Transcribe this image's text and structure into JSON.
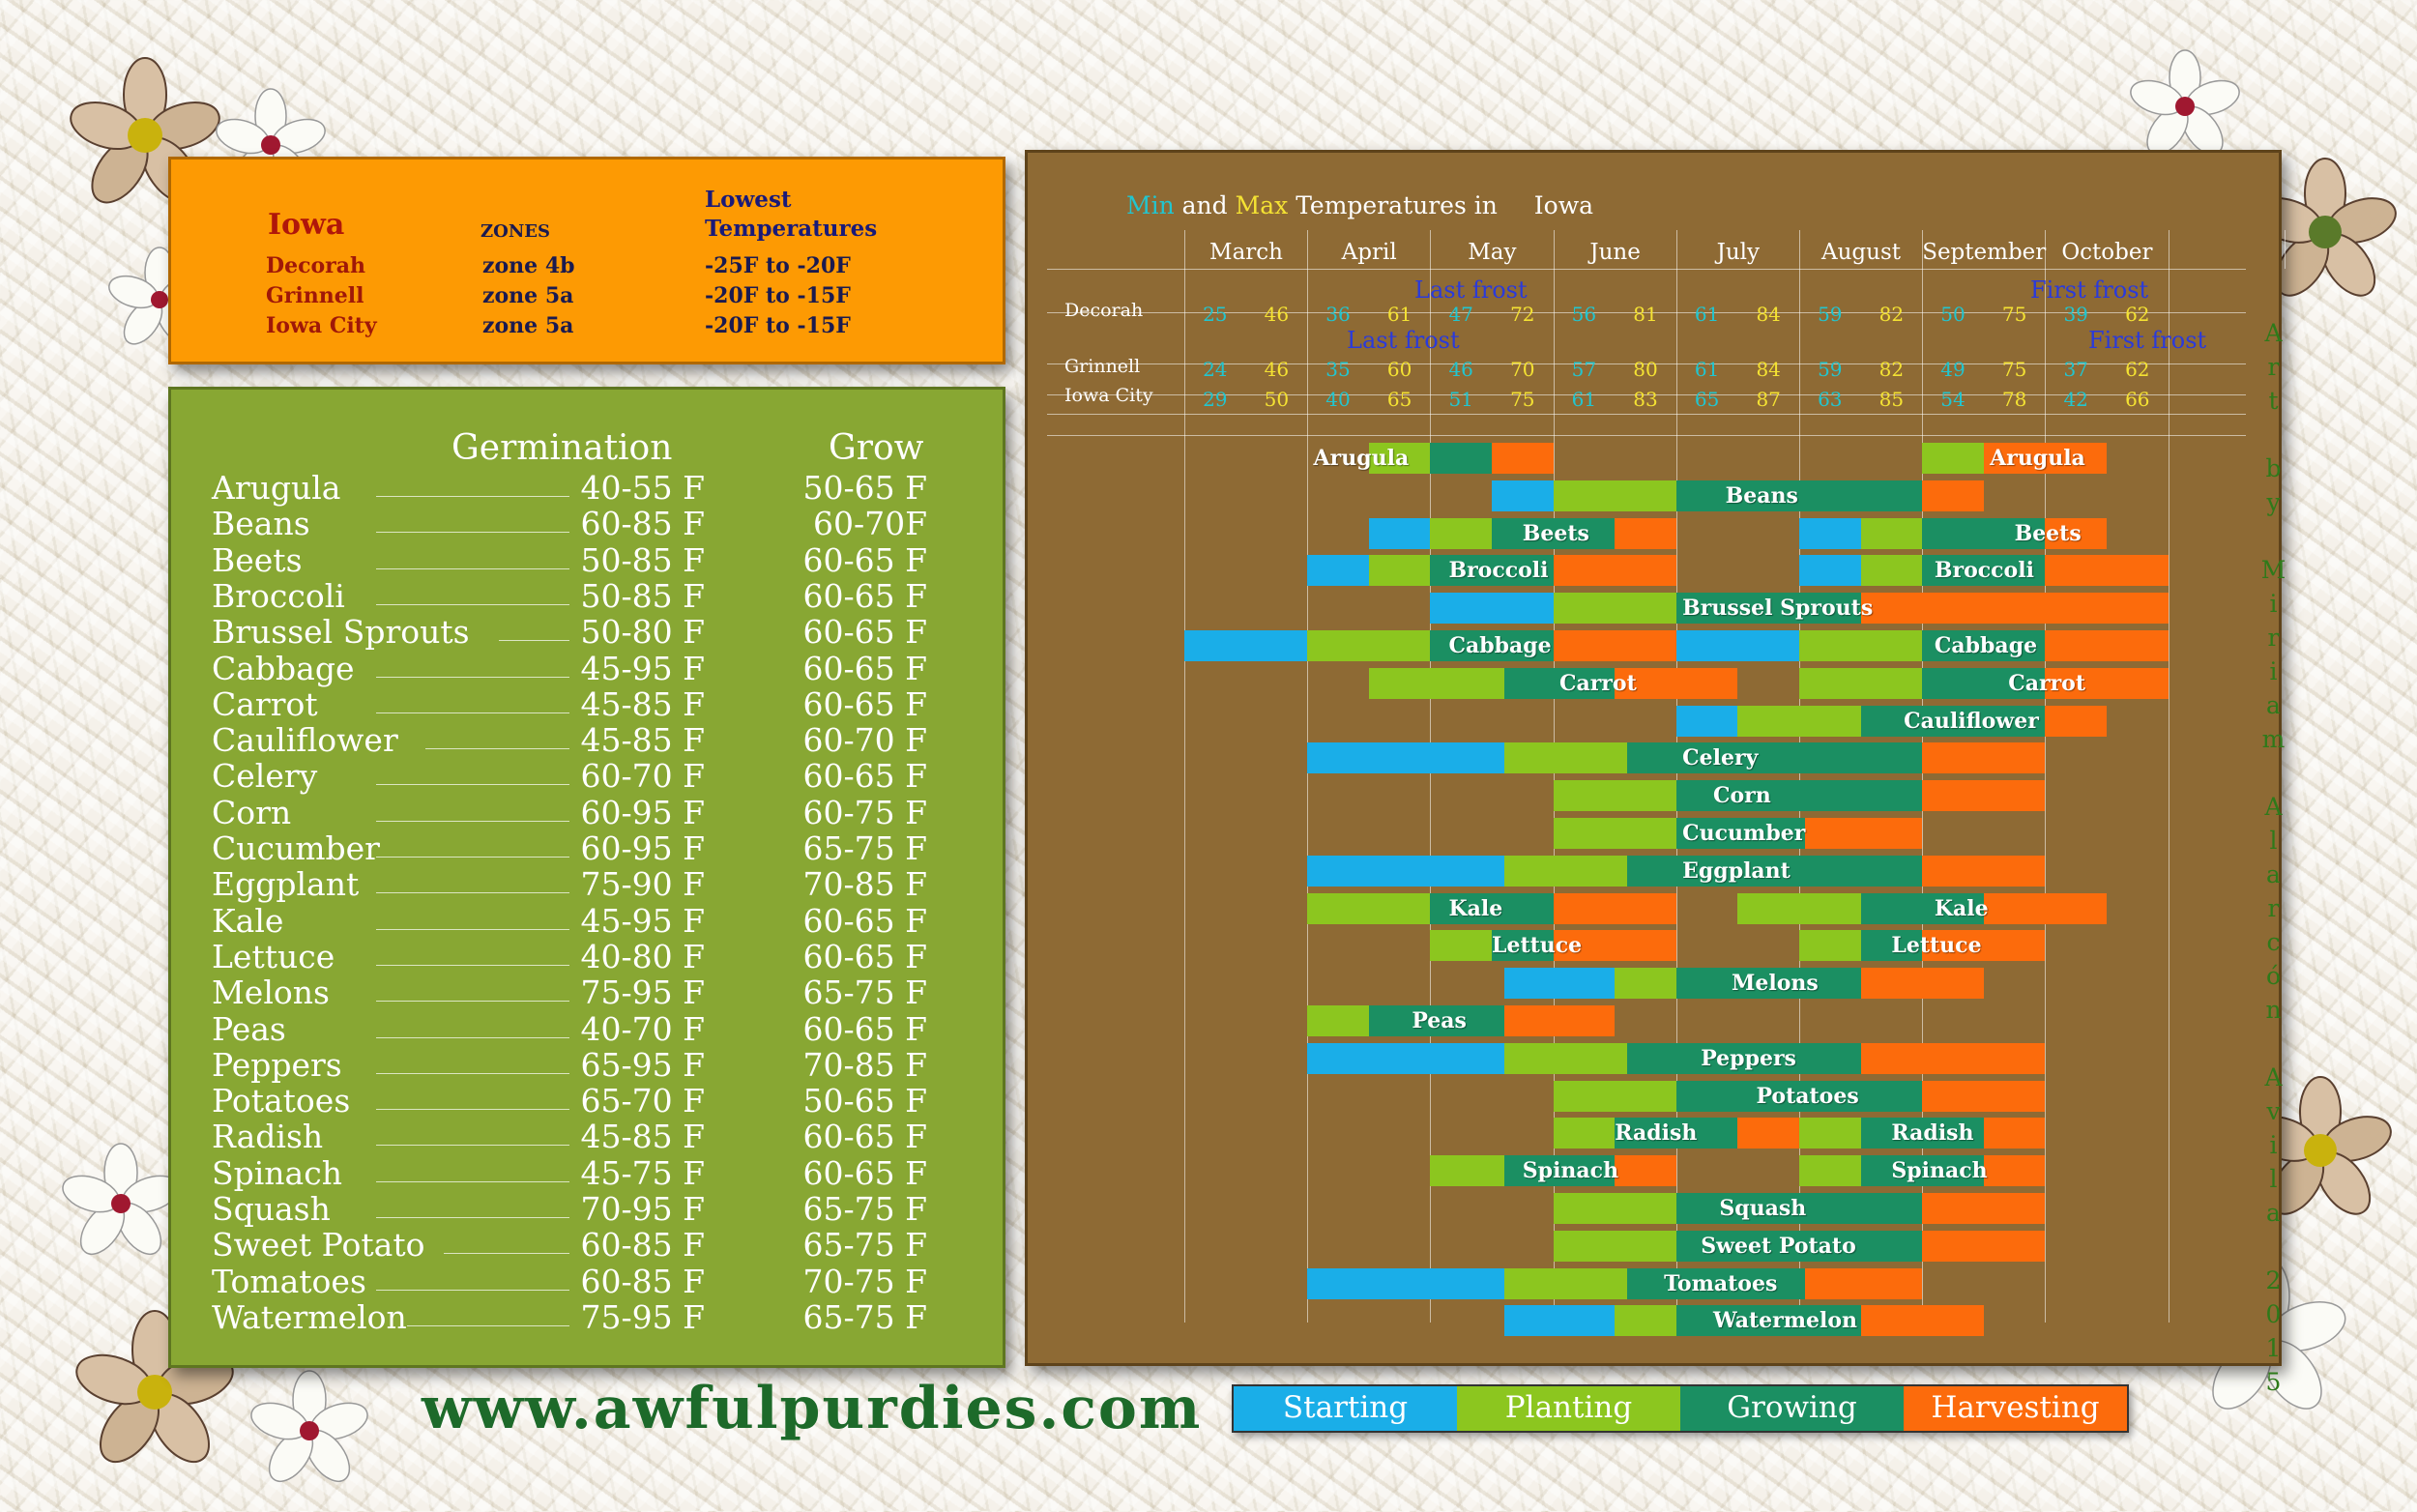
{
  "colors": {
    "starting": "#1aaee8",
    "planting": "#8cc61f",
    "growing": "#1b8f62",
    "harvesting": "#fc6b0c",
    "min": "#22c5cf",
    "max": "#f4e233"
  },
  "zones_panel": {
    "state": "Iowa",
    "zones_header": "ZONES",
    "temp_header_1": "Lowest",
    "temp_header_2": "Temperatures",
    "rows": [
      {
        "city": "Decorah",
        "zone": "zone 4b",
        "temp": "-25F to -20F"
      },
      {
        "city": "Grinnell",
        "zone": "zone 5a",
        "temp": "-20F to -15F"
      },
      {
        "city": "Iowa City",
        "zone": "zone 5a",
        "temp": "-20F to -15F"
      }
    ]
  },
  "germination_panel": {
    "header_germination": "Germination",
    "header_grow": "Grow",
    "rows": [
      {
        "name": "Arugula",
        "germ": "40-55 F",
        "grow": "50-65 F"
      },
      {
        "name": "Beans",
        "germ": "60-85 F",
        "grow": "60-70F"
      },
      {
        "name": "Beets",
        "germ": "50-85 F",
        "grow": "60-65 F"
      },
      {
        "name": "Broccoli",
        "germ": "50-85 F",
        "grow": "60-65 F"
      },
      {
        "name": "Brussel Sprouts",
        "germ": "50-80 F",
        "grow": "60-65 F"
      },
      {
        "name": "Cabbage",
        "germ": "45-95 F",
        "grow": "60-65 F"
      },
      {
        "name": "Carrot",
        "germ": "45-85 F",
        "grow": "60-65 F"
      },
      {
        "name": "Cauliflower",
        "germ": "45-85 F",
        "grow": "60-70 F"
      },
      {
        "name": "Celery",
        "germ": "60-70 F",
        "grow": "60-65 F"
      },
      {
        "name": "Corn",
        "germ": "60-95 F",
        "grow": "60-75 F"
      },
      {
        "name": "Cucumber",
        "germ": "60-95 F",
        "grow": "65-75 F"
      },
      {
        "name": "Eggplant",
        "germ": "75-90 F",
        "grow": "70-85 F"
      },
      {
        "name": "Kale",
        "germ": "45-95 F",
        "grow": "60-65 F"
      },
      {
        "name": "Lettuce",
        "germ": "40-80 F",
        "grow": "60-65 F"
      },
      {
        "name": "Melons",
        "germ": "75-95 F",
        "grow": "65-75 F"
      },
      {
        "name": "Peas",
        "germ": "40-70 F",
        "grow": "60-65 F"
      },
      {
        "name": "Peppers",
        "germ": "65-95 F",
        "grow": "70-85 F"
      },
      {
        "name": "Potatoes",
        "germ": "65-70 F",
        "grow": "50-65 F"
      },
      {
        "name": "Radish",
        "germ": "45-85 F",
        "grow": "60-65 F"
      },
      {
        "name": "Spinach",
        "germ": "45-75 F",
        "grow": "60-65 F"
      },
      {
        "name": "Squash",
        "germ": "70-95 F",
        "grow": "65-75 F"
      },
      {
        "name": "Sweet Potato",
        "germ": "60-85 F",
        "grow": "65-75 F"
      },
      {
        "name": "Tomatoes",
        "germ": "60-85 F",
        "grow": "70-75 F"
      },
      {
        "name": "Watermelon",
        "germ": "75-95 F",
        "grow": "65-75 F"
      }
    ]
  },
  "chart_panel": {
    "title_min": "Min",
    "title_and": "and",
    "title_max": "Max",
    "title_rest": "Temperatures  in",
    "title_state": "Iowa",
    "months": [
      "March",
      "April",
      "May",
      "June",
      "July",
      "August",
      "September",
      "October"
    ],
    "cities": [
      {
        "name": "Decorah",
        "temps": [
          25,
          46,
          36,
          61,
          47,
          72,
          56,
          81,
          61,
          84,
          59,
          82,
          50,
          75,
          39,
          62
        ]
      },
      {
        "name": "Grinnell",
        "temps": [
          24,
          46,
          35,
          60,
          46,
          70,
          57,
          80,
          61,
          84,
          59,
          82,
          49,
          75,
          37,
          62
        ]
      },
      {
        "name": "Iowa City",
        "temps": [
          29,
          50,
          40,
          65,
          51,
          75,
          61,
          83,
          65,
          87,
          63,
          85,
          54,
          78,
          42,
          66
        ]
      }
    ],
    "last_frost": "Last frost",
    "first_frost": "First frost"
  },
  "chart_data": {
    "type": "gantt",
    "months": [
      "March",
      "April",
      "May",
      "June",
      "July",
      "August",
      "September",
      "October"
    ],
    "unit": "half-month index from start of March",
    "rows": [
      {
        "label": "Arugula",
        "labels": [
          {
            "at": 2.1,
            "text": "Arugula"
          },
          {
            "at": 13.1,
            "text": "Arugula"
          }
        ],
        "segments": [
          [
            3,
            4,
            "planting"
          ],
          [
            4,
            5,
            "growing"
          ],
          [
            5,
            6,
            "harvesting"
          ],
          [
            12,
            13,
            "planting"
          ],
          [
            13,
            15,
            "harvesting"
          ]
        ]
      },
      {
        "label": "Beans",
        "labels": [
          {
            "at": 8.8,
            "text": "Beans"
          }
        ],
        "segments": [
          [
            5,
            6,
            "starting"
          ],
          [
            6,
            8,
            "planting"
          ],
          [
            8,
            12,
            "growing"
          ],
          [
            12,
            13,
            "harvesting"
          ]
        ]
      },
      {
        "label": "Beets",
        "labels": [
          {
            "at": 5.5,
            "text": "Beets"
          },
          {
            "at": 13.5,
            "text": "Beets"
          }
        ],
        "segments": [
          [
            3,
            4,
            "starting"
          ],
          [
            4,
            5,
            "planting"
          ],
          [
            5,
            7,
            "growing"
          ],
          [
            7,
            8,
            "harvesting"
          ],
          [
            10,
            11,
            "starting"
          ],
          [
            11,
            12,
            "planting"
          ],
          [
            12,
            14,
            "growing"
          ],
          [
            14,
            15,
            "harvesting"
          ]
        ]
      },
      {
        "label": "Broccoli",
        "labels": [
          {
            "at": 4.3,
            "text": "Broccoli"
          },
          {
            "at": 12.2,
            "text": "Broccoli"
          }
        ],
        "segments": [
          [
            2,
            3,
            "starting"
          ],
          [
            3,
            4,
            "planting"
          ],
          [
            4,
            6,
            "growing"
          ],
          [
            6,
            8,
            "harvesting"
          ],
          [
            10,
            11,
            "starting"
          ],
          [
            11,
            12,
            "planting"
          ],
          [
            12,
            14,
            "growing"
          ],
          [
            14,
            16,
            "harvesting"
          ]
        ]
      },
      {
        "label": "Brussel Sprouts",
        "labels": [
          {
            "at": 8.1,
            "text": "Brussel Sprouts"
          }
        ],
        "segments": [
          [
            4,
            6,
            "starting"
          ],
          [
            6,
            8,
            "planting"
          ],
          [
            8,
            11,
            "growing"
          ],
          [
            11,
            16,
            "harvesting"
          ]
        ]
      },
      {
        "label": "Cabbage",
        "labels": [
          {
            "at": 4.3,
            "text": "Cabbage"
          },
          {
            "at": 12.2,
            "text": "Cabbage"
          }
        ],
        "segments": [
          [
            0,
            2,
            "starting"
          ],
          [
            2,
            4,
            "planting"
          ],
          [
            4,
            6,
            "growing"
          ],
          [
            6,
            8,
            "harvesting"
          ],
          [
            8,
            10,
            "starting"
          ],
          [
            10,
            12,
            "planting"
          ],
          [
            12,
            14,
            "growing"
          ],
          [
            14,
            16,
            "harvesting"
          ]
        ]
      },
      {
        "label": "Carrot",
        "labels": [
          {
            "at": 6.1,
            "text": "Carrot"
          },
          {
            "at": 13.4,
            "text": "Carrot"
          }
        ],
        "segments": [
          [
            3,
            5.2,
            "planting"
          ],
          [
            5.2,
            7,
            "growing"
          ],
          [
            7,
            9,
            "harvesting"
          ],
          [
            10,
            12,
            "planting"
          ],
          [
            12,
            14,
            "growing"
          ],
          [
            14,
            16,
            "harvesting"
          ]
        ]
      },
      {
        "label": "Cauliflower",
        "labels": [
          {
            "at": 11.7,
            "text": "Cauliflower"
          }
        ],
        "segments": [
          [
            8,
            9,
            "starting"
          ],
          [
            9,
            11,
            "planting"
          ],
          [
            11,
            14,
            "growing"
          ],
          [
            14,
            15,
            "harvesting"
          ]
        ]
      },
      {
        "label": "Celery",
        "labels": [
          {
            "at": 8.1,
            "text": "Celery"
          }
        ],
        "segments": [
          [
            2,
            5.2,
            "starting"
          ],
          [
            5.2,
            7.2,
            "planting"
          ],
          [
            7.2,
            12,
            "growing"
          ],
          [
            12,
            14,
            "harvesting"
          ]
        ]
      },
      {
        "label": "Corn",
        "labels": [
          {
            "at": 8.6,
            "text": "Corn"
          }
        ],
        "segments": [
          [
            6,
            8,
            "planting"
          ],
          [
            8,
            12,
            "growing"
          ],
          [
            12,
            14,
            "harvesting"
          ]
        ]
      },
      {
        "label": "Cucumber",
        "labels": [
          {
            "at": 8.1,
            "text": "Cucumber"
          }
        ],
        "segments": [
          [
            6,
            8,
            "planting"
          ],
          [
            8,
            10.1,
            "growing"
          ],
          [
            10.1,
            12,
            "harvesting"
          ]
        ]
      },
      {
        "label": "Eggplant",
        "labels": [
          {
            "at": 8.1,
            "text": "Eggplant"
          }
        ],
        "segments": [
          [
            2,
            5.2,
            "starting"
          ],
          [
            5.2,
            7.2,
            "planting"
          ],
          [
            7.2,
            12,
            "growing"
          ],
          [
            12,
            14,
            "harvesting"
          ]
        ]
      },
      {
        "label": "Kale",
        "labels": [
          {
            "at": 4.3,
            "text": "Kale"
          },
          {
            "at": 12.2,
            "text": "Kale"
          }
        ],
        "segments": [
          [
            2,
            4,
            "planting"
          ],
          [
            4,
            6,
            "growing"
          ],
          [
            6,
            8,
            "harvesting"
          ],
          [
            9,
            11,
            "planting"
          ],
          [
            11,
            13,
            "growing"
          ],
          [
            13,
            15,
            "harvesting"
          ]
        ]
      },
      {
        "label": "Lettuce",
        "labels": [
          {
            "at": 5.0,
            "text": "Lettuce"
          },
          {
            "at": 11.5,
            "text": "Lettuce"
          }
        ],
        "segments": [
          [
            4,
            5,
            "planting"
          ],
          [
            5,
            6,
            "growing"
          ],
          [
            6,
            8,
            "harvesting"
          ],
          [
            10,
            11,
            "planting"
          ],
          [
            11,
            12,
            "growing"
          ],
          [
            12,
            14,
            "harvesting"
          ]
        ]
      },
      {
        "label": "Melons",
        "labels": [
          {
            "at": 8.9,
            "text": "Melons"
          }
        ],
        "segments": [
          [
            5.2,
            7,
            "starting"
          ],
          [
            7,
            8,
            "planting"
          ],
          [
            8,
            11,
            "growing"
          ],
          [
            11,
            13,
            "harvesting"
          ]
        ]
      },
      {
        "label": "Peas",
        "labels": [
          {
            "at": 3.7,
            "text": "Peas"
          }
        ],
        "segments": [
          [
            2,
            3,
            "planting"
          ],
          [
            3,
            5.2,
            "growing"
          ],
          [
            5.2,
            7,
            "harvesting"
          ]
        ]
      },
      {
        "label": "Peppers",
        "labels": [
          {
            "at": 8.4,
            "text": "Peppers"
          }
        ],
        "segments": [
          [
            2,
            5.2,
            "starting"
          ],
          [
            5.2,
            7.2,
            "planting"
          ],
          [
            7.2,
            11,
            "growing"
          ],
          [
            11,
            14,
            "harvesting"
          ]
        ]
      },
      {
        "label": "Potatoes",
        "labels": [
          {
            "at": 9.3,
            "text": "Potatoes"
          }
        ],
        "segments": [
          [
            6,
            8,
            "planting"
          ],
          [
            8,
            12,
            "growing"
          ],
          [
            12,
            14,
            "harvesting"
          ]
        ]
      },
      {
        "label": "Radish",
        "labels": [
          {
            "at": 7.0,
            "text": "Radish"
          },
          {
            "at": 11.5,
            "text": "Radish"
          }
        ],
        "segments": [
          [
            6,
            7,
            "planting"
          ],
          [
            7,
            9,
            "growing"
          ],
          [
            9,
            10,
            "harvesting"
          ],
          [
            10,
            11,
            "planting"
          ],
          [
            11,
            13,
            "growing"
          ],
          [
            13,
            14,
            "harvesting"
          ]
        ]
      },
      {
        "label": "Spinach",
        "labels": [
          {
            "at": 5.5,
            "text": "Spinach"
          },
          {
            "at": 11.5,
            "text": "Spinach"
          }
        ],
        "segments": [
          [
            4,
            5.2,
            "planting"
          ],
          [
            5.2,
            7,
            "growing"
          ],
          [
            7,
            8,
            "harvesting"
          ],
          [
            10,
            11,
            "planting"
          ],
          [
            11,
            13,
            "growing"
          ],
          [
            13,
            14,
            "harvesting"
          ]
        ]
      },
      {
        "label": "Squash",
        "labels": [
          {
            "at": 8.7,
            "text": "Squash"
          }
        ],
        "segments": [
          [
            6,
            8,
            "planting"
          ],
          [
            8,
            12,
            "growing"
          ],
          [
            12,
            14,
            "harvesting"
          ]
        ]
      },
      {
        "label": "Sweet Potato",
        "labels": [
          {
            "at": 8.4,
            "text": "Sweet Potato"
          }
        ],
        "segments": [
          [
            6,
            8,
            "planting"
          ],
          [
            8,
            12,
            "growing"
          ],
          [
            12,
            14,
            "harvesting"
          ]
        ]
      },
      {
        "label": "Tomatoes",
        "labels": [
          {
            "at": 7.8,
            "text": "Tomatoes"
          }
        ],
        "segments": [
          [
            2,
            5.2,
            "starting"
          ],
          [
            5.2,
            7.2,
            "planting"
          ],
          [
            7.2,
            10.1,
            "growing"
          ],
          [
            10.1,
            12,
            "harvesting"
          ]
        ]
      },
      {
        "label": "Watermelon",
        "labels": [
          {
            "at": 8.6,
            "text": "Watermelon"
          }
        ],
        "segments": [
          [
            5.2,
            7,
            "starting"
          ],
          [
            7,
            8,
            "planting"
          ],
          [
            8,
            11,
            "growing"
          ],
          [
            11,
            13,
            "harvesting"
          ]
        ]
      }
    ]
  },
  "legend": {
    "items": [
      {
        "label": "Starting",
        "color": "#1aaee8"
      },
      {
        "label": "Planting",
        "color": "#8cc61f"
      },
      {
        "label": "Growing",
        "color": "#1b8f62"
      },
      {
        "label": "Harvesting",
        "color": "#fc6b0c"
      }
    ]
  },
  "website": "www.awfulpurdies.com",
  "credit": "Art by Miriam Alarcón Avila 2015"
}
